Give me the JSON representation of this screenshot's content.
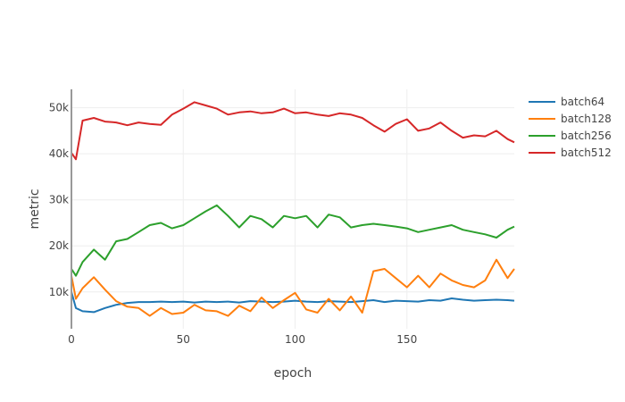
{
  "chart_data": {
    "type": "line",
    "title": "",
    "xlabel": "epoch",
    "ylabel": "metric",
    "xlim": [
      0,
      198
    ],
    "ylim": [
      2000,
      54000
    ],
    "grid": true,
    "legend_position": "right",
    "x_ticks": [
      0,
      50,
      100,
      150
    ],
    "x_tick_labels": [
      "0",
      "50",
      "100",
      "150"
    ],
    "y_ticks": [
      10000,
      20000,
      30000,
      40000,
      50000
    ],
    "y_tick_labels": [
      "10k",
      "20k",
      "30k",
      "40k",
      "50k"
    ],
    "x": [
      0,
      2,
      5,
      10,
      15,
      20,
      25,
      30,
      35,
      40,
      45,
      50,
      55,
      60,
      65,
      70,
      75,
      80,
      85,
      90,
      95,
      100,
      105,
      110,
      115,
      120,
      125,
      130,
      135,
      140,
      145,
      150,
      155,
      160,
      165,
      170,
      175,
      180,
      185,
      190,
      195,
      198
    ],
    "series": [
      {
        "name": "batch64",
        "color": "#1f77b4",
        "values": [
          10000,
          6500,
          5800,
          5600,
          6500,
          7200,
          7600,
          7800,
          7800,
          7900,
          7800,
          7900,
          7700,
          7900,
          7800,
          7900,
          7700,
          8000,
          7900,
          7800,
          7900,
          8100,
          7900,
          7800,
          8000,
          7900,
          7800,
          8000,
          8200,
          7800,
          8100,
          8000,
          7900,
          8200,
          8100,
          8600,
          8300,
          8100,
          8200,
          8300,
          8200,
          8100
        ]
      },
      {
        "name": "batch128",
        "color": "#ff7f0e",
        "values": [
          13500,
          8500,
          10800,
          13200,
          10500,
          8000,
          6800,
          6500,
          4800,
          6500,
          5200,
          5500,
          7200,
          6000,
          5800,
          4800,
          7000,
          5800,
          8800,
          6500,
          8200,
          9800,
          6200,
          5500,
          8500,
          6000,
          9000,
          5500,
          14500,
          15000,
          13000,
          11000,
          13500,
          11000,
          14000,
          12500,
          11500,
          11000,
          12500,
          17000,
          13000,
          15000
        ]
      },
      {
        "name": "batch256",
        "color": "#2ca02c",
        "values": [
          15000,
          13500,
          16500,
          19200,
          17000,
          21000,
          21500,
          23000,
          24500,
          25000,
          23800,
          24500,
          26000,
          27500,
          28800,
          26500,
          24000,
          26500,
          25800,
          24000,
          26500,
          26000,
          26500,
          24000,
          26800,
          26200,
          24000,
          24500,
          24800,
          24500,
          24200,
          23800,
          23000,
          23500,
          24000,
          24500,
          23500,
          23000,
          22500,
          21800,
          23500,
          24200
        ]
      },
      {
        "name": "batch512",
        "color": "#d62728",
        "values": [
          40200,
          38800,
          47200,
          47800,
          47000,
          46800,
          46200,
          46800,
          46500,
          46300,
          48500,
          49800,
          51200,
          50500,
          49800,
          48500,
          49000,
          49200,
          48800,
          49000,
          49800,
          48800,
          49000,
          48500,
          48200,
          48800,
          48500,
          47800,
          46200,
          44800,
          46500,
          47500,
          45000,
          45500,
          46800,
          45000,
          43500,
          44000,
          43800,
          45000,
          43200,
          42500
        ]
      }
    ]
  },
  "legend": {
    "items": [
      {
        "label": "batch64",
        "color": "#1f77b4"
      },
      {
        "label": "batch128",
        "color": "#ff7f0e"
      },
      {
        "label": "batch256",
        "color": "#2ca02c"
      },
      {
        "label": "batch512",
        "color": "#d62728"
      }
    ]
  },
  "axes": {
    "x_title": "epoch",
    "y_title": "metric"
  }
}
